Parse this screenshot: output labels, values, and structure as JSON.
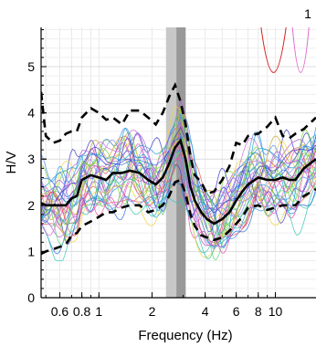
{
  "chart_data": {
    "type": "line",
    "panel_label": "1",
    "xlabel": "Frequency (Hz)",
    "ylabel": "H/V",
    "xscale": "log",
    "xlim": [
      0.47,
      17
    ],
    "ylim": [
      0,
      5.85
    ],
    "grid": true,
    "x_ticks": [
      {
        "value": 0.6,
        "label": "0.6"
      },
      {
        "value": 0.8,
        "label": "0.8"
      },
      {
        "value": 1,
        "label": "1"
      },
      {
        "value": 2,
        "label": "2"
      },
      {
        "value": 4,
        "label": "4"
      },
      {
        "value": 6,
        "label": "6"
      },
      {
        "value": 8,
        "label": "8"
      },
      {
        "value": 10,
        "label": "10"
      }
    ],
    "y_ticks": [
      {
        "value": 0,
        "label": "0"
      },
      {
        "value": 1,
        "label": "1"
      },
      {
        "value": 2,
        "label": "2"
      },
      {
        "value": 3,
        "label": "3"
      },
      {
        "value": 4,
        "label": "4"
      },
      {
        "value": 5,
        "label": "5"
      }
    ],
    "peak_band": {
      "outer": [
        2.4,
        3.1
      ],
      "inner": [
        2.75,
        3.1
      ],
      "outer_color": "#c8c8c8",
      "inner_color": "#999999"
    },
    "average": {
      "x": [
        0.47,
        0.5,
        0.55,
        0.6,
        0.65,
        0.7,
        0.75,
        0.8,
        0.9,
        1.0,
        1.1,
        1.2,
        1.35,
        1.5,
        1.7,
        1.9,
        2.1,
        2.3,
        2.5,
        2.7,
        2.9,
        3.1,
        3.3,
        3.5,
        3.8,
        4.1,
        4.5,
        5.0,
        5.5,
        6.0,
        6.5,
        7.0,
        8.0,
        9.0,
        10.0,
        11.0,
        12.0,
        13.0,
        14.5,
        17.0
      ],
      "y": [
        2.05,
        2.0,
        2.0,
        2.0,
        2.0,
        2.15,
        2.2,
        2.55,
        2.65,
        2.6,
        2.55,
        2.7,
        2.7,
        2.75,
        2.7,
        2.55,
        2.45,
        2.6,
        2.9,
        3.25,
        3.4,
        3.0,
        2.4,
        2.1,
        1.85,
        1.7,
        1.6,
        1.7,
        1.85,
        2.1,
        2.3,
        2.45,
        2.6,
        2.55,
        2.55,
        2.6,
        2.55,
        2.55,
        2.8,
        3.0
      ]
    },
    "upper_bound": {
      "x": [
        0.47,
        0.49,
        0.5,
        0.55,
        0.6,
        0.65,
        0.7,
        0.75,
        0.8,
        0.9,
        1.0,
        1.1,
        1.2,
        1.35,
        1.5,
        1.7,
        1.9,
        2.1,
        2.3,
        2.5,
        2.7,
        2.9,
        3.1,
        3.3,
        3.5,
        3.8,
        4.1,
        4.5,
        5.0,
        5.5,
        6.0,
        6.5,
        7.0,
        8.0,
        9.0,
        10.0,
        11.0,
        12.0,
        13.0,
        14.5,
        17.0
      ],
      "y": [
        4.45,
        3.8,
        3.5,
        3.35,
        3.4,
        3.55,
        3.6,
        3.6,
        3.9,
        4.1,
        4.0,
        3.85,
        3.9,
        3.75,
        4.05,
        4.05,
        3.9,
        3.75,
        4.0,
        4.35,
        4.6,
        4.25,
        3.75,
        3.05,
        2.65,
        2.5,
        2.25,
        2.3,
        2.55,
        2.85,
        3.35,
        3.3,
        3.5,
        3.55,
        3.7,
        3.9,
        3.5,
        3.45,
        3.55,
        3.65,
        3.9
      ]
    },
    "lower_bound": {
      "x": [
        0.47,
        0.5,
        0.55,
        0.6,
        0.65,
        0.7,
        0.75,
        0.8,
        0.9,
        1.0,
        1.1,
        1.2,
        1.35,
        1.5,
        1.7,
        1.9,
        2.1,
        2.3,
        2.5,
        2.7,
        2.9,
        3.1,
        3.3,
        3.5,
        3.8,
        4.1,
        4.5,
        5.0,
        5.5,
        6.0,
        6.5,
        7.0,
        8.0,
        9.0,
        10.0,
        11.0,
        12.0,
        13.0,
        14.5,
        17.0
      ],
      "y": [
        0.95,
        1.0,
        1.05,
        1.1,
        1.15,
        1.35,
        1.4,
        1.55,
        1.65,
        1.75,
        1.85,
        1.85,
        1.95,
        2.0,
        2.0,
        1.85,
        1.9,
        2.0,
        2.2,
        2.5,
        2.55,
        2.25,
        1.8,
        1.55,
        1.35,
        1.3,
        1.25,
        1.3,
        1.45,
        1.6,
        1.75,
        1.95,
        2.0,
        1.9,
        1.95,
        2.0,
        2.0,
        2.0,
        2.2,
        2.35
      ]
    }
  }
}
